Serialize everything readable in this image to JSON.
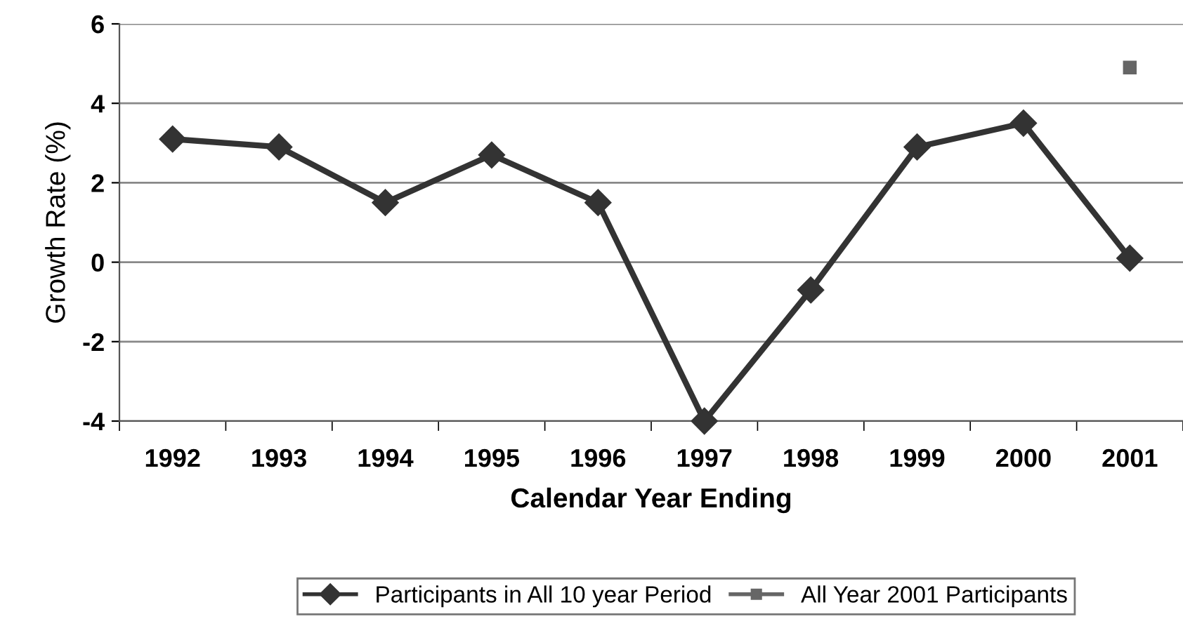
{
  "chart_data": {
    "type": "line",
    "xlabel": "Calendar Year Ending",
    "ylabel": "Growth Rate (%)",
    "categories": [
      "1992",
      "1993",
      "1994",
      "1995",
      "1996",
      "1997",
      "1998",
      "1999",
      "2000",
      "2001"
    ],
    "series": [
      {
        "name": "Participants in All 10 year Period",
        "color": "#333333",
        "marker": "diamond",
        "values": [
          3.1,
          2.9,
          1.5,
          2.7,
          1.5,
          -4.0,
          -0.7,
          2.9,
          3.5,
          0.1
        ]
      },
      {
        "name": "All Year 2001 Participants",
        "color": "#666666",
        "marker": "square",
        "values": [
          null,
          null,
          null,
          null,
          null,
          null,
          null,
          null,
          null,
          4.9
        ]
      }
    ],
    "ylim": [
      -4,
      6
    ],
    "yticks": [
      -4,
      -2,
      0,
      2,
      4,
      6
    ],
    "grid": "y",
    "legend": "bottom",
    "line_style": "solid"
  }
}
